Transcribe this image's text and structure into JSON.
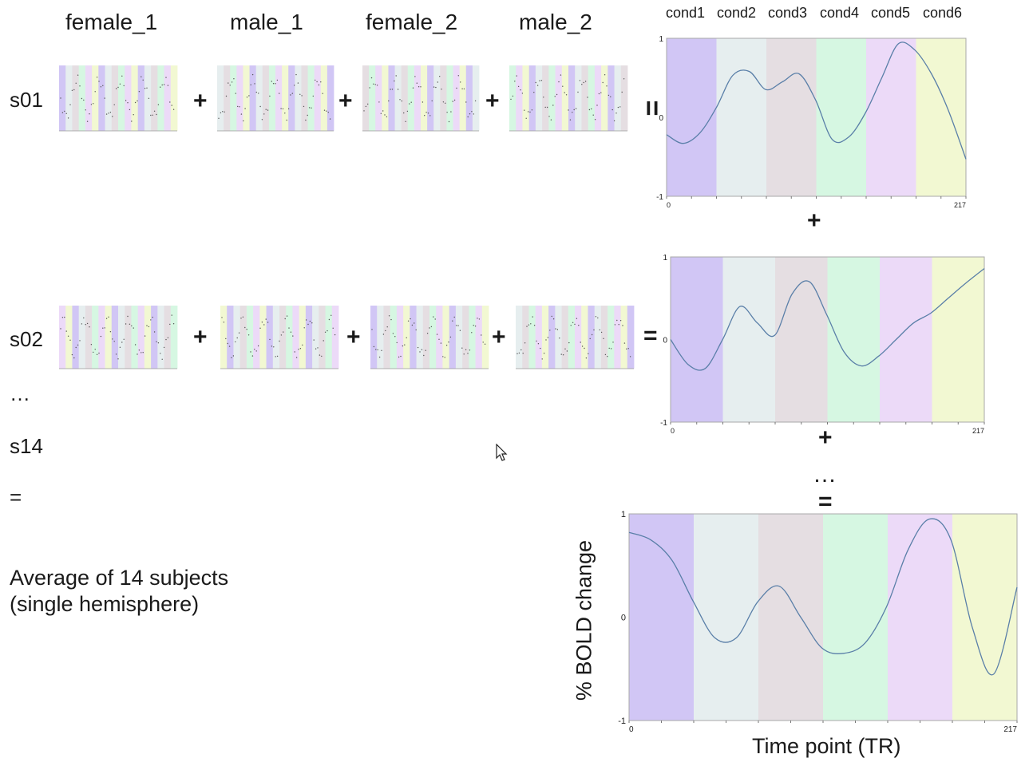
{
  "headers": [
    "female_1",
    "male_1",
    "female_2",
    "male_2"
  ],
  "conditions": [
    "cond1",
    "cond2",
    "cond3",
    "cond4",
    "cond5",
    "cond6"
  ],
  "rows": [
    "s01",
    "s02",
    "…",
    "s14",
    "="
  ],
  "operators": {
    "plus": "+",
    "equals": "=",
    "ellipsis": "…"
  },
  "average_label": {
    "line1": "Average of 14 subjects",
    "line2": "(single hemisphere)"
  },
  "colors": {
    "cond1": "#d1c6f5",
    "cond2": "#e6eeef",
    "cond3": "#e5dee2",
    "cond4": "#d6f7e2",
    "cond5": "#ecdaf8",
    "cond6": "#f2f8d2",
    "curve": "#5a7fa8",
    "frame": "#a8a8a8"
  },
  "chart_data": [
    {
      "type": "line",
      "panel": "s01",
      "x": [
        0,
        12,
        24,
        36,
        48,
        60,
        72,
        84,
        96,
        108,
        120,
        132,
        144,
        156,
        168,
        180,
        192,
        204,
        217
      ],
      "values": [
        -0.22,
        -0.33,
        -0.2,
        0.12,
        0.53,
        0.58,
        0.35,
        0.45,
        0.55,
        0.22,
        -0.28,
        -0.25,
        0.05,
        0.5,
        0.93,
        0.85,
        0.55,
        0.1,
        -0.53
      ],
      "ylim": [
        -1,
        1
      ],
      "xlim": [
        0,
        217
      ],
      "yticks": [
        "1",
        "0",
        "-1"
      ],
      "xticks": [
        "0",
        "217"
      ],
      "bands": [
        "cond1",
        "cond2",
        "cond3",
        "cond4",
        "cond5",
        "cond6"
      ]
    },
    {
      "type": "line",
      "panel": "s02",
      "x": [
        0,
        12,
        24,
        36,
        48,
        60,
        72,
        84,
        96,
        108,
        120,
        132,
        144,
        156,
        168,
        180,
        192,
        204,
        217
      ],
      "values": [
        0.0,
        -0.3,
        -0.35,
        0.0,
        0.4,
        0.2,
        0.05,
        0.55,
        0.7,
        0.3,
        -0.15,
        -0.32,
        -0.2,
        0.0,
        0.2,
        0.32,
        0.5,
        0.68,
        0.86
      ],
      "ylim": [
        -1,
        1
      ],
      "xlim": [
        0,
        217
      ],
      "yticks": [
        "1",
        "0",
        "-1"
      ],
      "xticks": [
        "0",
        "217"
      ],
      "bands": [
        "cond1",
        "cond2",
        "cond3",
        "cond4",
        "cond5",
        "cond6"
      ]
    },
    {
      "type": "line",
      "panel": "average",
      "x": [
        0,
        12,
        24,
        36,
        48,
        60,
        72,
        84,
        96,
        108,
        120,
        132,
        144,
        156,
        168,
        180,
        192,
        204,
        217
      ],
      "values": [
        0.82,
        0.75,
        0.55,
        0.15,
        -0.2,
        -0.2,
        0.15,
        0.3,
        0.0,
        -0.3,
        -0.35,
        -0.25,
        0.1,
        0.65,
        0.95,
        0.75,
        -0.1,
        -0.55,
        0.29
      ],
      "ylim": [
        -1,
        1
      ],
      "xlim": [
        0,
        217
      ],
      "yticks": [
        "1",
        "0",
        "-1"
      ],
      "xticks": [
        "0",
        "217"
      ],
      "ylabel": "% BOLD change",
      "xlabel": "Time point (TR)",
      "bands": [
        "cond1",
        "cond2",
        "cond3",
        "cond4",
        "cond5",
        "cond6"
      ]
    }
  ]
}
